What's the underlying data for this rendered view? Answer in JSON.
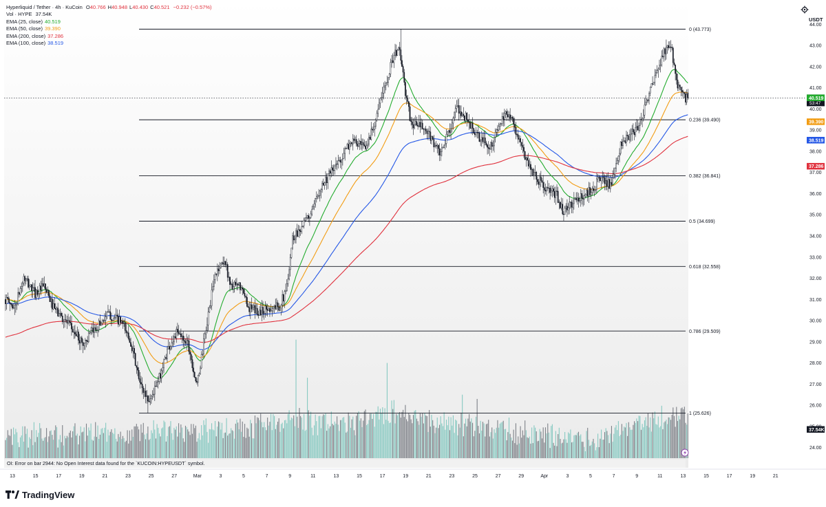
{
  "header": {
    "title": "Hyperliquid / Tether · 4h · KuCoin",
    "ohlc": [
      {
        "k": "O",
        "v": "40.766"
      },
      {
        "k": "H",
        "v": "40.948"
      },
      {
        "k": "L",
        "v": "40.430"
      },
      {
        "k": "C",
        "v": "40.521"
      }
    ],
    "change": "−0.232 (−0.57%)",
    "volume_label": "Vol · HYPE",
    "volume_value": "37.54K"
  },
  "indicators": [
    {
      "label": "EMA (25, close)",
      "value": "40.519",
      "color": "#22ab2d"
    },
    {
      "label": "EMA (50, close)",
      "value": "39.390",
      "color": "#f29c12"
    },
    {
      "label": "EMA (200, close)",
      "value": "37.286",
      "color": "#e0313d"
    },
    {
      "label": "EMA (100, close)",
      "value": "38.519",
      "color": "#2457e6"
    }
  ],
  "currency": "USDT",
  "error_message": "OI: Error on bar 2944: No Open Interest data found for the `KUCOIN:HYPEUSDT` symbol.",
  "brand": "TradingView",
  "colors": {
    "candle": "#131722",
    "grid": "#e0e3eb",
    "volume_up": "#86c9c1",
    "volume_down": "#7d8087"
  },
  "chart_data": {
    "type": "candlestick",
    "symbol": "HYPEUSDT",
    "interval": "4h",
    "ylim": [
      23.5,
      44.5
    ],
    "y_ticks": [
      24.0,
      25.0,
      26.0,
      27.0,
      28.0,
      29.0,
      30.0,
      31.0,
      32.0,
      33.0,
      34.0,
      35.0,
      36.0,
      37.0,
      38.0,
      39.0,
      40.0,
      41.0,
      42.0,
      43.0,
      44.0
    ],
    "x_ticks": [
      "13",
      "15",
      "17",
      "19",
      "21",
      "23",
      "25",
      "27",
      "Mar",
      "3",
      "5",
      "7",
      "9",
      "11",
      "13",
      "15",
      "17",
      "19",
      "21",
      "23",
      "25",
      "27",
      "29",
      "Apr",
      "3",
      "5",
      "7",
      "9",
      "11",
      "13",
      "15",
      "17",
      "19",
      "21"
    ],
    "price_labels": [
      {
        "text": "40.521",
        "sub": "53:47",
        "price": 40.521,
        "color": "#131722"
      },
      {
        "text": "40.519",
        "price": 40.519,
        "color": "#22ab2d"
      },
      {
        "text": "39.390",
        "price": 39.39,
        "color": "#f29c12"
      },
      {
        "text": "38.519",
        "price": 38.519,
        "color": "#2457e6"
      },
      {
        "text": "37.286",
        "price": 37.286,
        "color": "#e0313d"
      },
      {
        "text": "37.54K",
        "price": 24.85,
        "color": "#131722"
      }
    ],
    "fib": [
      {
        "ratio": "0",
        "price": 43.773,
        "label": "0 (43.773)"
      },
      {
        "ratio": "0.236",
        "price": 39.49,
        "label": "0.236 (39.490)"
      },
      {
        "ratio": "0.382",
        "price": 36.841,
        "label": "0.382 (36.841)"
      },
      {
        "ratio": "0.5",
        "price": 34.699,
        "label": "0.5 (34.699)"
      },
      {
        "ratio": "0.618",
        "price": 32.558,
        "label": "0.618 (32.558)"
      },
      {
        "ratio": "0.786",
        "price": 29.509,
        "label": "0.786 (29.509)"
      },
      {
        "ratio": "1",
        "price": 25.626,
        "label": "1 (25.626)"
      }
    ],
    "close_path": [
      [
        0,
        31.0
      ],
      [
        8,
        30.6
      ],
      [
        16,
        32.0
      ],
      [
        26,
        31.3
      ],
      [
        34,
        31.6
      ],
      [
        42,
        30.6
      ],
      [
        54,
        29.9
      ],
      [
        68,
        28.9
      ],
      [
        80,
        29.7
      ],
      [
        90,
        30.3
      ],
      [
        102,
        29.9
      ],
      [
        110,
        29.0
      ],
      [
        118,
        27.0
      ],
      [
        126,
        26.2
      ],
      [
        134,
        27.1
      ],
      [
        142,
        28.6
      ],
      [
        150,
        29.4
      ],
      [
        160,
        29.0
      ],
      [
        168,
        26.9
      ],
      [
        176,
        29.6
      ],
      [
        184,
        32.2
      ],
      [
        192,
        32.9
      ],
      [
        198,
        31.6
      ],
      [
        206,
        31.6
      ],
      [
        214,
        30.6
      ],
      [
        222,
        30.4
      ],
      [
        232,
        30.6
      ],
      [
        240,
        30.7
      ],
      [
        246,
        31.3
      ],
      [
        252,
        33.9
      ],
      [
        262,
        34.6
      ],
      [
        270,
        35.2
      ],
      [
        276,
        36.3
      ],
      [
        290,
        37.3
      ],
      [
        304,
        38.5
      ],
      [
        316,
        38.1
      ],
      [
        324,
        39.4
      ],
      [
        334,
        41.3
      ],
      [
        340,
        42.4
      ],
      [
        346,
        42.9
      ],
      [
        350,
        41.1
      ],
      [
        356,
        39.3
      ],
      [
        364,
        39.2
      ],
      [
        374,
        38.6
      ],
      [
        382,
        37.8
      ],
      [
        388,
        38.8
      ],
      [
        396,
        40.0
      ],
      [
        404,
        39.6
      ],
      [
        414,
        38.7
      ],
      [
        426,
        38.2
      ],
      [
        434,
        39.3
      ],
      [
        442,
        39.9
      ],
      [
        452,
        38.3
      ],
      [
        462,
        37.1
      ],
      [
        474,
        36.2
      ],
      [
        484,
        35.9
      ],
      [
        490,
        35.1
      ],
      [
        498,
        35.6
      ],
      [
        508,
        35.9
      ],
      [
        516,
        36.3
      ],
      [
        524,
        36.8
      ],
      [
        532,
        36.3
      ],
      [
        540,
        38.3
      ],
      [
        548,
        38.7
      ],
      [
        556,
        39.2
      ],
      [
        564,
        40.6
      ],
      [
        572,
        41.7
      ],
      [
        578,
        42.7
      ],
      [
        584,
        43.0
      ],
      [
        590,
        41.2
      ],
      [
        596,
        40.5
      ]
    ],
    "volume_anchors": [
      [
        0,
        24.9
      ],
      [
        100,
        25.0
      ],
      [
        190,
        25.2
      ],
      [
        250,
        25.6
      ],
      [
        300,
        25.4
      ],
      [
        340,
        26.0
      ],
      [
        400,
        25.4
      ],
      [
        470,
        24.9
      ],
      [
        520,
        24.7
      ],
      [
        540,
        25.3
      ],
      [
        596,
        25.9
      ]
    ],
    "volume_spikes": [
      {
        "i": 255,
        "v": 29.1
      },
      {
        "i": 335,
        "v": 28.0
      },
      {
        "i": 265,
        "v": 27.3
      },
      {
        "i": 401,
        "v": 26.5
      },
      {
        "i": 414,
        "v": 26.3
      }
    ]
  }
}
